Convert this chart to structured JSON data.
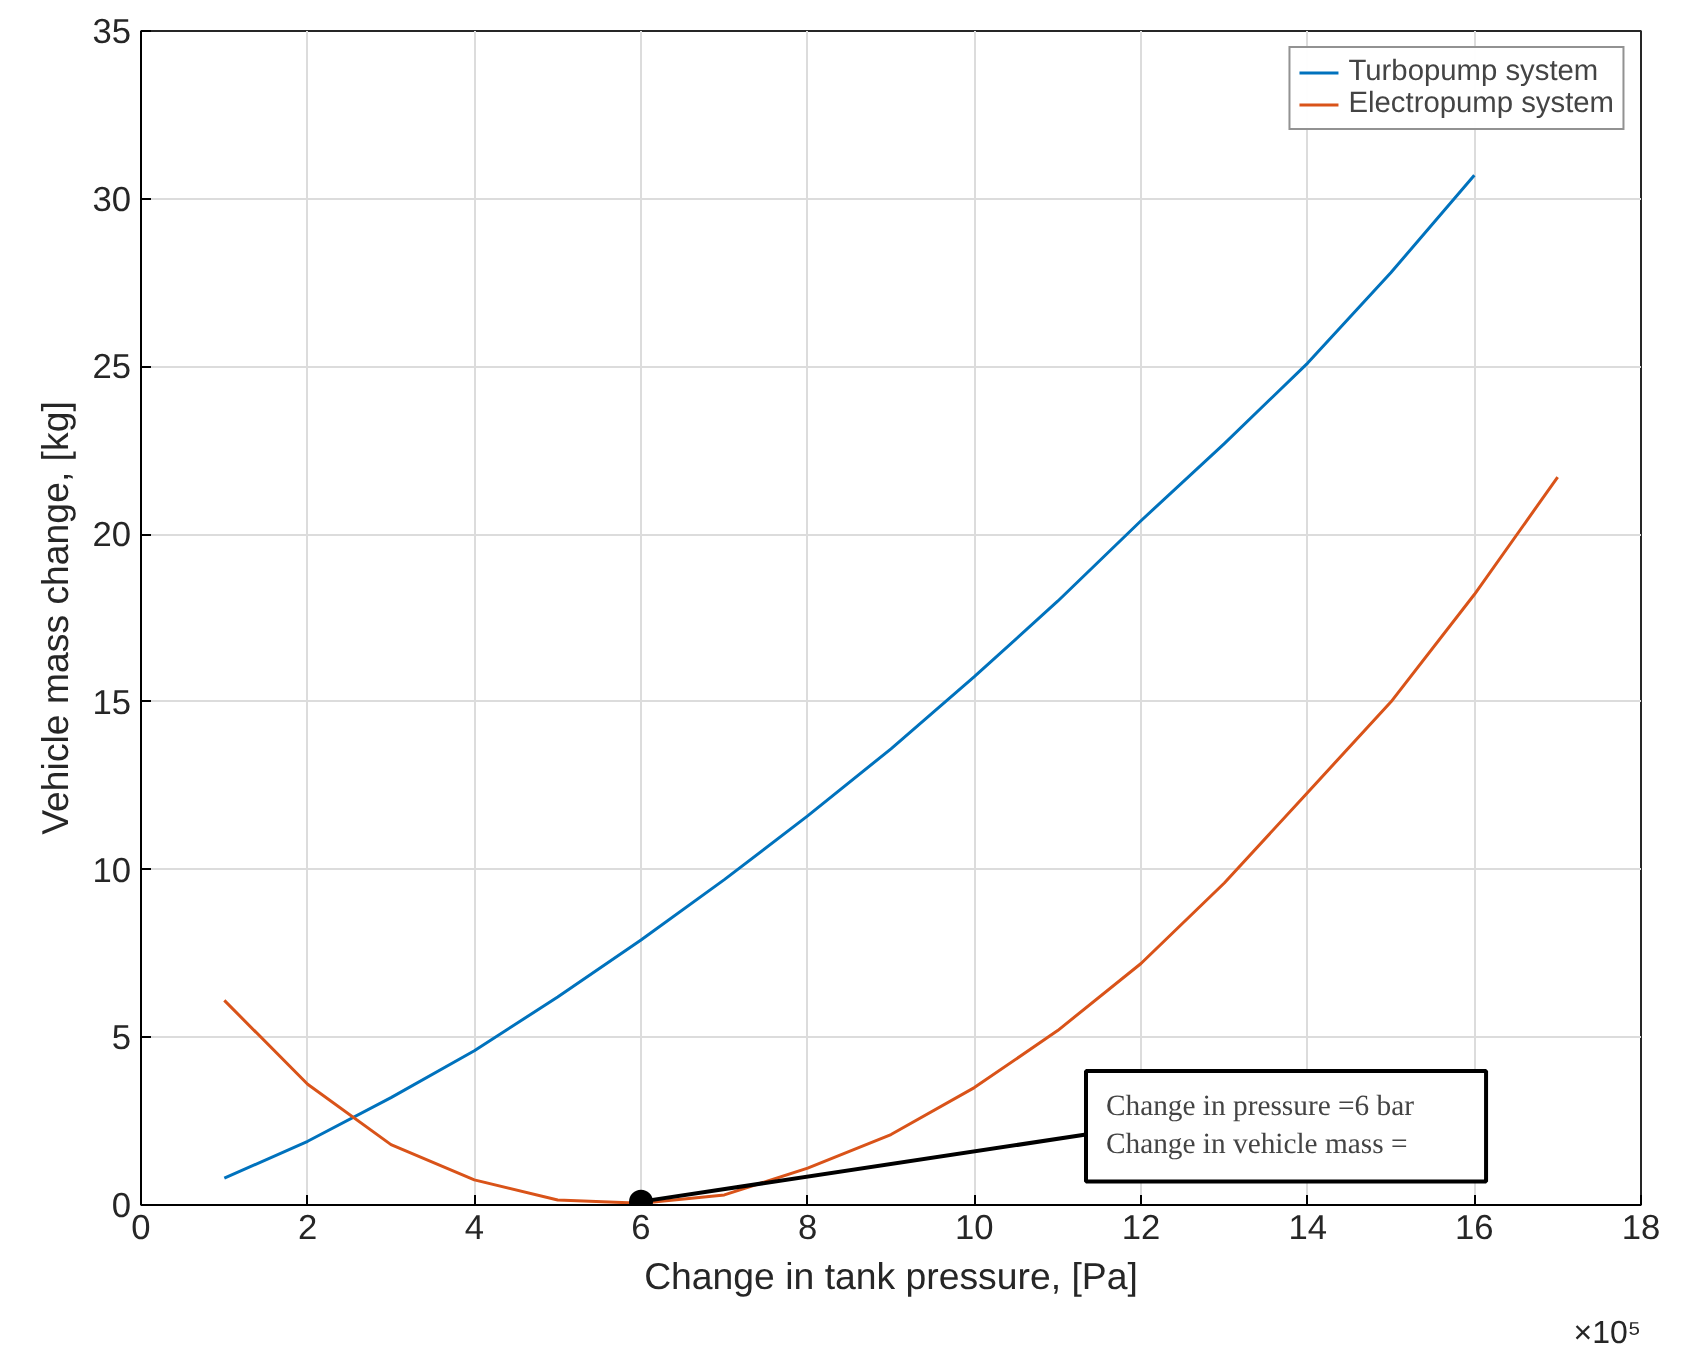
{
  "chart_data": {
    "type": "line",
    "xlabel": "Change in tank pressure, [Pa]",
    "ylabel": "Vehicle mass change, [kg]",
    "x": [
      1,
      2,
      3,
      4,
      5,
      6,
      7,
      8,
      9,
      10,
      11,
      12,
      13,
      14,
      15,
      16,
      17
    ],
    "series": [
      {
        "name": "Turbopump system",
        "color": "#0072bd",
        "x": [
          1,
          2,
          3,
          4,
          5,
          6,
          7,
          8,
          9,
          10,
          11,
          12,
          13,
          14,
          15,
          16
        ],
        "values": [
          0.8,
          1.9,
          3.2,
          4.6,
          6.2,
          7.9,
          9.7,
          11.6,
          13.6,
          15.75,
          18.0,
          20.4,
          22.7,
          25.1,
          27.8,
          30.7
        ]
      },
      {
        "name": "Electropump system",
        "color": "#d95319",
        "values": [
          6.1,
          3.6,
          1.8,
          0.75,
          0.15,
          0.05,
          0.3,
          1.1,
          2.1,
          3.5,
          5.2,
          7.2,
          9.6,
          12.3,
          15.0,
          18.2,
          21.7
        ]
      }
    ],
    "xlim": [
      0,
      18
    ],
    "ylim": [
      0,
      35
    ],
    "xticks": [
      0,
      2,
      4,
      6,
      8,
      10,
      12,
      14,
      16,
      18
    ],
    "yticks": [
      0,
      5,
      10,
      15,
      20,
      25,
      30,
      35
    ],
    "grid": true,
    "legend": "top right",
    "marker": "none",
    "line_style": "solid",
    "annotations": [
      {
        "text": "Change in pressure =6 bar\nChange   in   vehicle   mass   =",
        "x": 6,
        "y": 0.1
      },
      "×10⁵"
    ]
  }
}
